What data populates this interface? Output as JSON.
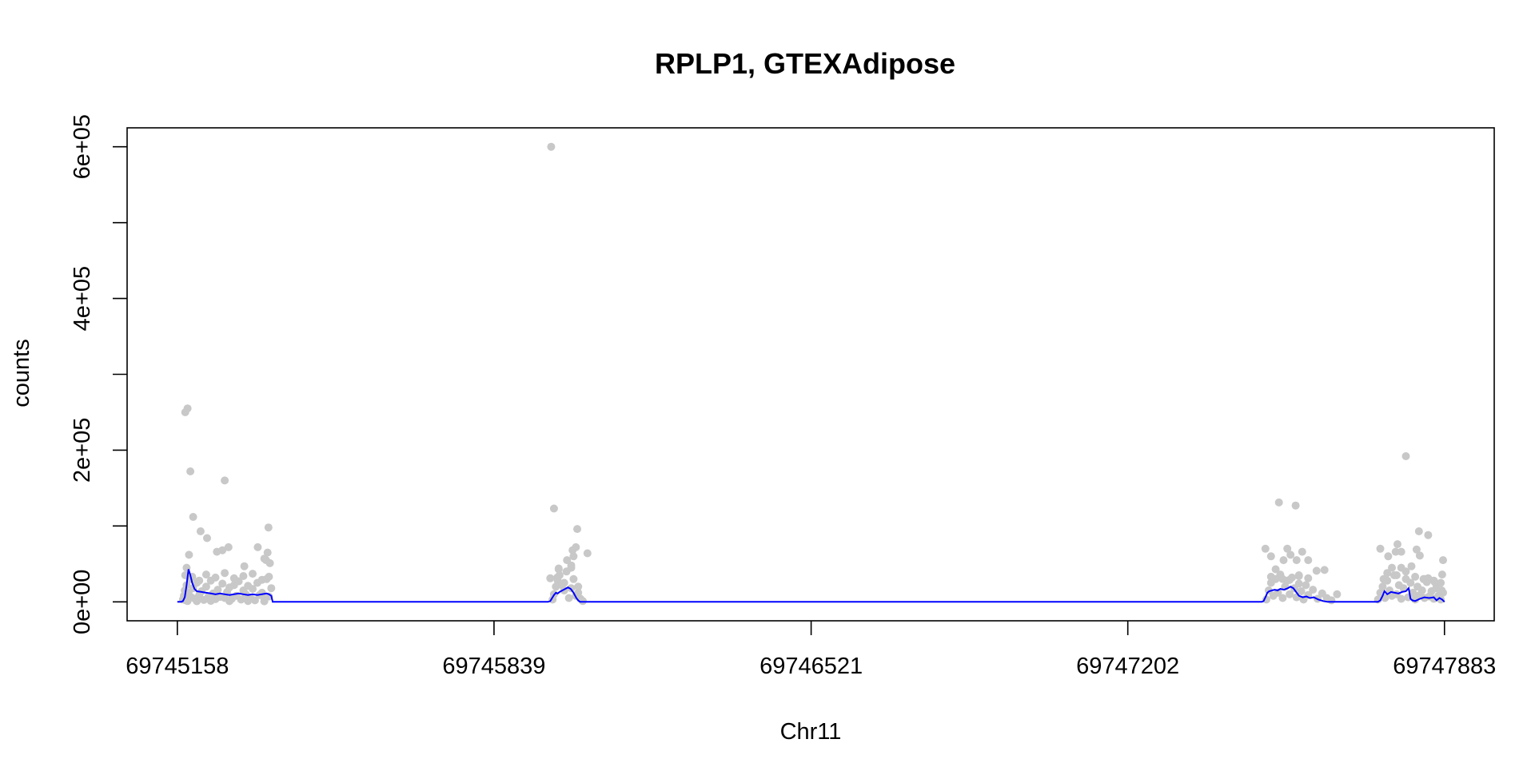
{
  "chart_data": {
    "type": "scatter",
    "title": "RPLP1, GTEXAdipose",
    "xlabel": "Chr11",
    "ylabel": "counts",
    "xlim": [
      69745050,
      69747990
    ],
    "ylim": [
      -25000,
      625000
    ],
    "x_ticks": [
      69745158,
      69745839,
      69746521,
      69747202,
      69747883
    ],
    "x_tick_labels": [
      "69745158",
      "69745839",
      "69746521",
      "69747202",
      "69747883"
    ],
    "y_ticks": [
      0,
      100000,
      200000,
      300000,
      400000,
      500000,
      600000
    ],
    "y_tick_labels": [
      "0e+00",
      "",
      "2e+05",
      "",
      "4e+05",
      "",
      "6e+05"
    ],
    "point_color": "#c8c8c8",
    "line_color": "#0000ff",
    "grid": false,
    "legend": "none",
    "series": [
      {
        "kind": "points",
        "x": [
          69745170,
          69745172,
          69745174,
          69745176,
          69745178,
          69745180,
          69745182,
          69745185,
          69745188,
          69745192,
          69745196,
          69745200,
          69745205,
          69745210,
          69745215,
          69745220,
          69745225,
          69745230,
          69745235,
          69745240,
          69745245,
          69745250,
          69745255,
          69745260,
          69745265,
          69745270,
          69745275,
          69745280,
          69745285,
          69745290,
          69745295,
          69745300,
          69745305,
          69745310,
          69745315,
          69745320,
          69745325,
          69745330,
          69745335,
          69745340,
          69745345,
          69745350,
          69745355,
          69745360,
          69745175,
          69745190,
          69745205,
          69745220,
          69745240,
          69745260,
          69745280,
          69745300,
          69745320,
          69745340,
          69745355,
          69745180,
          69745200,
          69745230,
          69745270,
          69745310,
          69745345,
          69745178,
          69745183,
          69745175,
          69745180,
          69745186,
          69745192,
          69745208,
          69745222,
          69745243,
          69745255,
          69745260,
          69745268,
          69745302,
          69745331,
          69745345,
          69745352,
          69745354,
          69745357,
          69745349,
          69745962,
          69745965,
          69745968,
          69745972,
          69745976,
          69745980,
          69745985,
          69745990,
          69745995,
          69746000,
          69746005,
          69746010,
          69746015,
          69746020,
          69746025,
          69746030,
          69745975,
          69745990,
          69746005,
          69746020,
          69745968,
          69745978,
          69745996,
          69746008,
          69746015,
          69746010,
          69746005,
          69745978,
          69746040,
          69746018,
          69745960,
          69747500,
          69747505,
          69747510,
          69747515,
          69747520,
          69747525,
          69747530,
          69747535,
          69747540,
          69747545,
          69747550,
          69747555,
          69747560,
          69747565,
          69747570,
          69747575,
          69747580,
          69747585,
          69747590,
          69747600,
          69747610,
          69747620,
          69747630,
          69747640,
          69747510,
          69747530,
          69747550,
          69747570,
          69747590,
          69747498,
          69747510,
          69747520,
          69747527,
          69747537,
          69747545,
          69747552,
          69747563,
          69747577,
          69747608,
          69747625,
          69747590,
          69747652,
          69747535,
          69747565,
          69747570,
          69747740,
          69747745,
          69747750,
          69747755,
          69747760,
          69747765,
          69747770,
          69747775,
          69747780,
          69747785,
          69747790,
          69747795,
          69747800,
          69747805,
          69747810,
          69747815,
          69747820,
          69747825,
          69747830,
          69747835,
          69747840,
          69747845,
          69747850,
          69747855,
          69747860,
          69747865,
          69747870,
          69747875,
          69747880,
          69747760,
          69747780,
          69747800,
          69747820,
          69747840,
          69747860,
          69747875,
          69747745,
          69747752,
          69747762,
          69747770,
          69747778,
          69747790,
          69747800,
          69747812,
          69747828,
          69747838,
          69747848,
          69747862,
          69747880,
          69747878,
          69747877,
          69747848,
          69747830,
          69747823,
          69747790,
          69747782
        ],
        "y": [
          3000,
          8000,
          15000,
          2000,
          22000,
          5000,
          12000,
          30000,
          6000,
          18000,
          4000,
          25000,
          9000,
          14000,
          2500,
          20000,
          7000,
          28000,
          11000,
          3500,
          16000,
          6500,
          24000,
          5000,
          13000,
          19000,
          4000,
          22000,
          8000,
          27000,
          3000,
          15000,
          10000,
          21000,
          5500,
          17000,
          2000,
          25000,
          9000,
          12000,
          4500,
          30000,
          7000,
          18000,
          35000,
          33000,
          28000,
          36000,
          32000,
          38000,
          31000,
          34000,
          37000,
          29000,
          33000,
          1000,
          800,
          1200,
          900,
          1100,
          700,
          45000,
          62000,
          250000,
          255000,
          172000,
          112000,
          93000,
          84000,
          66000,
          68000,
          160000,
          72000,
          47000,
          72000,
          57000,
          65000,
          98000,
          51000,
          55000,
          600000,
          3000,
          10000,
          20000,
          28000,
          35000,
          22000,
          15000,
          40000,
          5000,
          18000,
          30000,
          8000,
          12000,
          4000,
          1000,
          32000,
          25000,
          45000,
          20000,
          123000,
          43000,
          55000,
          68000,
          72000,
          60000,
          48000,
          44000,
          64000,
          96000,
          31000,
          3000,
          15000,
          25000,
          8000,
          30000,
          12000,
          35000,
          5000,
          20000,
          28000,
          10000,
          32000,
          18000,
          6000,
          24000,
          14000,
          3000,
          22000,
          9000,
          16000,
          4000,
          11000,
          5000,
          2000,
          33000,
          36000,
          29000,
          34000,
          31000,
          70000,
          60000,
          43000,
          131000,
          55000,
          70000,
          62000,
          127000,
          66000,
          41000,
          42000,
          55000,
          10000,
          30000,
          55000,
          35000,
          3000,
          12000,
          20000,
          5000,
          28000,
          15000,
          8000,
          35000,
          10000,
          22000,
          4000,
          18000,
          30000,
          6000,
          25000,
          12000,
          3000,
          20000,
          9000,
          15000,
          5000,
          26000,
          7000,
          14000,
          4000,
          18000,
          8000,
          3000,
          12000,
          38000,
          35000,
          40000,
          33000,
          30000,
          28000,
          25000,
          70000,
          30000,
          60000,
          45000,
          66000,
          45000,
          192000,
          47000,
          93000,
          30000,
          88000,
          26000,
          55000,
          36000,
          15000,
          31000,
          61000,
          69000,
          66000,
          76000
        ]
      },
      {
        "kind": "smooth-line",
        "x": [
          69745158,
          69745162,
          69745166,
          69745170,
          69745174,
          69745178,
          69745182,
          69745186,
          69745190,
          69745195,
          69745200,
          69745210,
          69745220,
          69745230,
          69745240,
          69745250,
          69745260,
          69745270,
          69745280,
          69745290,
          69745300,
          69745310,
          69745320,
          69745330,
          69745340,
          69745350,
          69745355,
          69745360,
          69745363,
          69745370,
          69745955,
          69745960,
          69745964,
          69745968,
          69745972,
          69745976,
          69745980,
          69745986,
          69745992,
          69745998,
          69746004,
          69746010,
          69746016,
          69746020,
          69746024,
          69746030,
          69746036,
          69746040,
          69747490,
          69747494,
          69747498,
          69747502,
          69747506,
          69747512,
          69747518,
          69747524,
          69747530,
          69747538,
          69747546,
          69747552,
          69747558,
          69747564,
          69747570,
          69747578,
          69747586,
          69747594,
          69747602,
          69747612,
          69747622,
          69747632,
          69747642,
          69747652,
          69747662,
          69747672,
          69747740,
          69747745,
          69747750,
          69747754,
          69747760,
          69747768,
          69747776,
          69747784,
          69747792,
          69747800,
          69747806,
          69747810,
          69747814,
          69747820,
          69747830,
          69747840,
          69747850,
          69747860,
          69747866,
          69747872,
          69747878,
          69747883
        ],
        "y": [
          0,
          0,
          0,
          1000,
          6000,
          22000,
          43000,
          35000,
          25000,
          17000,
          14000,
          13000,
          12000,
          11000,
          10000,
          11000,
          10000,
          9000,
          10000,
          11000,
          10000,
          9000,
          10000,
          9000,
          10000,
          11000,
          10000,
          8000,
          0,
          0,
          0,
          1000,
          5000,
          9000,
          12000,
          11000,
          13000,
          15000,
          17000,
          19000,
          17000,
          12000,
          5000,
          2000,
          0,
          0,
          0,
          0,
          0,
          1000,
          6000,
          12000,
          14000,
          15000,
          16000,
          15000,
          17000,
          16000,
          18000,
          20000,
          18000,
          13000,
          8000,
          6000,
          7000,
          5000,
          6000,
          3000,
          1000,
          0,
          0,
          0,
          0,
          0,
          0,
          2000,
          8000,
          14000,
          10000,
          13000,
          12000,
          11000,
          13000,
          14000,
          18000,
          4000,
          2000,
          1000,
          4000,
          6000,
          5000,
          6000,
          2000,
          5000,
          3000,
          0
        ]
      }
    ]
  }
}
